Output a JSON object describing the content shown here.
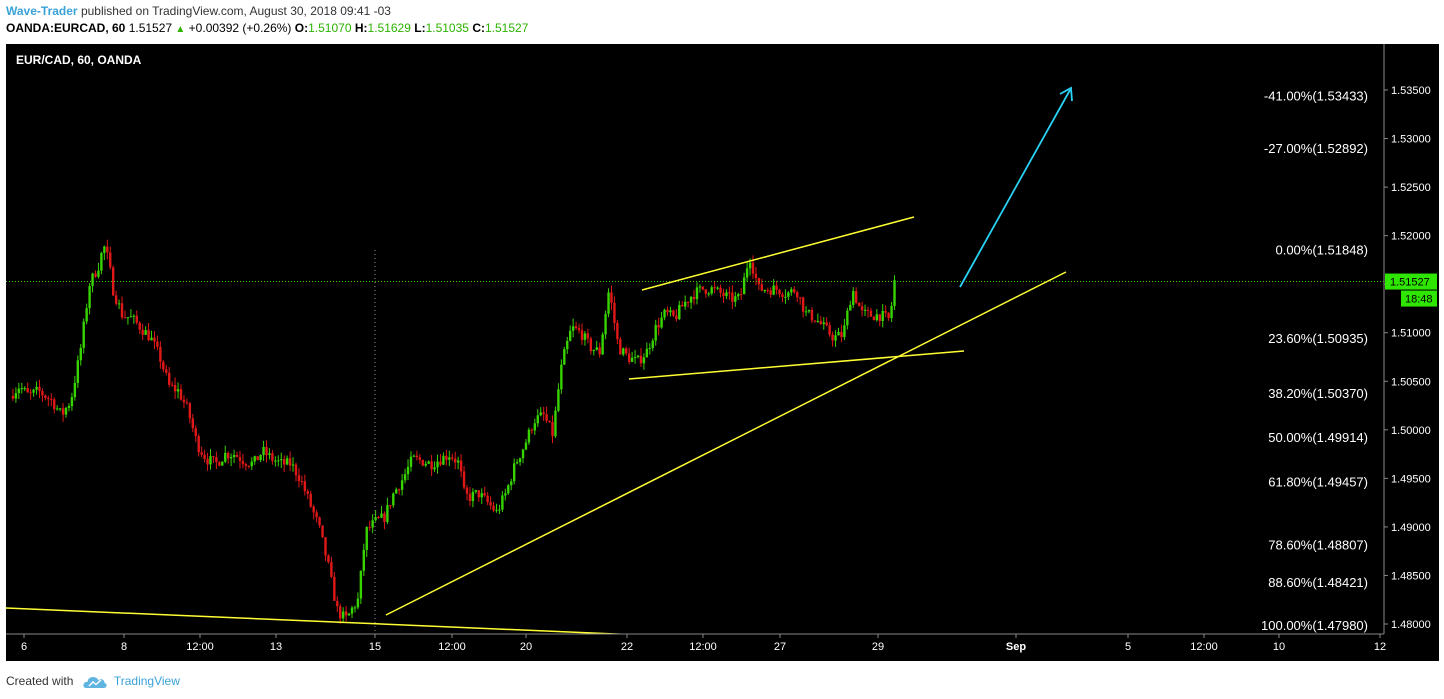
{
  "header": {
    "author": "Wave-Trader",
    "published_text": "published on TradingView.com, August 30, 2018 09:41 -03",
    "symbol": "OANDA:EURCAD, 60",
    "price": "1.51527",
    "change_arrow": "▲",
    "change": "+0.00392 (+0.26%)",
    "o_label": "O:",
    "o_value": "1.51070",
    "h_label": "H:",
    "h_value": "1.51629",
    "l_label": "L:",
    "l_value": "1.51035",
    "c_label": "C:",
    "c_value": "1.51527"
  },
  "footer": {
    "created_with": "Created with",
    "brand": "TradingView"
  },
  "chart_data": {
    "type": "candlestick",
    "title": "EUR/CAD, 60, OANDA",
    "ylim": [
      1.478,
      1.537
    ],
    "y_ticks": [
      "1.53500",
      "1.53000",
      "1.52500",
      "1.52000",
      "1.51500",
      "1.51000",
      "1.50500",
      "1.50000",
      "1.49500",
      "1.49000",
      "1.48500",
      "1.48000"
    ],
    "x_ticks": [
      "6",
      "8",
      "12:00",
      "13",
      "15",
      "12:00",
      "20",
      "22",
      "12:00",
      "27",
      "29",
      "Sep",
      "5",
      "12:00",
      "10",
      "12"
    ],
    "last_price": "1.51527",
    "countdown": "18:48",
    "fib_levels": [
      {
        "label": "-41.00%(1.53433)",
        "value": 1.53433
      },
      {
        "label": "-27.00%(1.52892)",
        "value": 1.52892
      },
      {
        "label": "0.00%(1.51848)",
        "value": 1.51848
      },
      {
        "label": "23.60%(1.50935)",
        "value": 1.50935
      },
      {
        "label": "38.20%(1.50370)",
        "value": 1.5037
      },
      {
        "label": "50.00%(1.49914)",
        "value": 1.49914
      },
      {
        "label": "61.80%(1.49457)",
        "value": 1.49457
      },
      {
        "label": "78.60%(1.48807)",
        "value": 1.48807
      },
      {
        "label": "88.60%(1.48421)",
        "value": 1.48421
      },
      {
        "label": "100.00%(1.47980)",
        "value": 1.4798
      }
    ],
    "colors": {
      "up": "#37d400",
      "down": "#e01818",
      "trendline": "#ffff33",
      "arrow": "#29d3f5",
      "price_line": "#37d400",
      "badge": "#2ee600"
    },
    "price_path": [
      [
        0.0,
        1.5035
      ],
      [
        0.01,
        1.5045
      ],
      [
        0.02,
        1.5035
      ],
      [
        0.03,
        1.504
      ],
      [
        0.045,
        1.503
      ],
      [
        0.055,
        1.5015
      ],
      [
        0.065,
        1.503
      ],
      [
        0.075,
        1.508
      ],
      [
        0.085,
        1.515
      ],
      [
        0.095,
        1.517
      ],
      [
        0.1,
        1.519
      ],
      [
        0.105,
        1.5175
      ],
      [
        0.11,
        1.5145
      ],
      [
        0.12,
        1.5118
      ],
      [
        0.13,
        1.5115
      ],
      [
        0.14,
        1.5105
      ],
      [
        0.15,
        1.5095
      ],
      [
        0.16,
        1.5075
      ],
      [
        0.17,
        1.5045
      ],
      [
        0.18,
        1.504
      ],
      [
        0.19,
        1.502
      ],
      [
        0.2,
        1.4985
      ],
      [
        0.21,
        1.497
      ],
      [
        0.22,
        1.4965
      ],
      [
        0.23,
        1.4975
      ],
      [
        0.24,
        1.4975
      ],
      [
        0.25,
        1.4968
      ],
      [
        0.26,
        1.4965
      ],
      [
        0.27,
        1.4978
      ],
      [
        0.28,
        1.497
      ],
      [
        0.29,
        1.4965
      ],
      [
        0.3,
        1.4965
      ],
      [
        0.31,
        1.495
      ],
      [
        0.32,
        1.4925
      ],
      [
        0.33,
        1.49
      ],
      [
        0.34,
        1.486
      ],
      [
        0.345,
        1.4835
      ],
      [
        0.35,
        1.4813
      ],
      [
        0.355,
        1.4808
      ],
      [
        0.36,
        1.4805
      ],
      [
        0.365,
        1.4815
      ],
      [
        0.372,
        1.4825
      ],
      [
        0.38,
        1.4895
      ],
      [
        0.39,
        1.4905
      ],
      [
        0.4,
        1.491
      ],
      [
        0.41,
        1.4935
      ],
      [
        0.42,
        1.495
      ],
      [
        0.43,
        1.497
      ],
      [
        0.44,
        1.4968
      ],
      [
        0.45,
        1.4965
      ],
      [
        0.46,
        1.497
      ],
      [
        0.47,
        1.4975
      ],
      [
        0.48,
        1.4965
      ],
      [
        0.485,
        1.4935
      ],
      [
        0.49,
        1.493
      ],
      [
        0.5,
        1.4935
      ],
      [
        0.51,
        1.4925
      ],
      [
        0.52,
        1.4915
      ],
      [
        0.53,
        1.4935
      ],
      [
        0.54,
        1.4965
      ],
      [
        0.55,
        1.4985
      ],
      [
        0.56,
        1.501
      ],
      [
        0.57,
        1.5015
      ],
      [
        0.575,
        1.5005
      ],
      [
        0.58,
        1.4995
      ],
      [
        0.585,
        1.5035
      ],
      [
        0.59,
        1.507
      ],
      [
        0.6,
        1.5105
      ],
      [
        0.61,
        1.51
      ],
      [
        0.62,
        1.5085
      ],
      [
        0.63,
        1.508
      ],
      [
        0.64,
        1.5145
      ],
      [
        0.65,
        1.5085
      ],
      [
        0.66,
        1.5075
      ],
      [
        0.67,
        1.507
      ],
      [
        0.68,
        1.508
      ],
      [
        0.69,
        1.5105
      ],
      [
        0.7,
        1.512
      ],
      [
        0.71,
        1.5115
      ],
      [
        0.72,
        1.513
      ],
      [
        0.73,
        1.514
      ],
      [
        0.74,
        1.5145
      ],
      [
        0.75,
        1.5145
      ],
      [
        0.76,
        1.514
      ],
      [
        0.77,
        1.5135
      ],
      [
        0.78,
        1.5135
      ],
      [
        0.79,
        1.518
      ],
      [
        0.8,
        1.5145
      ],
      [
        0.81,
        1.5145
      ],
      [
        0.82,
        1.5145
      ],
      [
        0.83,
        1.514
      ],
      [
        0.84,
        1.5145
      ],
      [
        0.85,
        1.512
      ],
      [
        0.86,
        1.5115
      ],
      [
        0.87,
        1.5105
      ],
      [
        0.88,
        1.5095
      ],
      [
        0.89,
        1.5098
      ],
      [
        0.9,
        1.5145
      ],
      [
        0.91,
        1.512
      ],
      [
        0.92,
        1.5118
      ],
      [
        0.93,
        1.5118
      ],
      [
        0.94,
        1.5113
      ],
      [
        0.945,
        1.5153
      ]
    ]
  }
}
